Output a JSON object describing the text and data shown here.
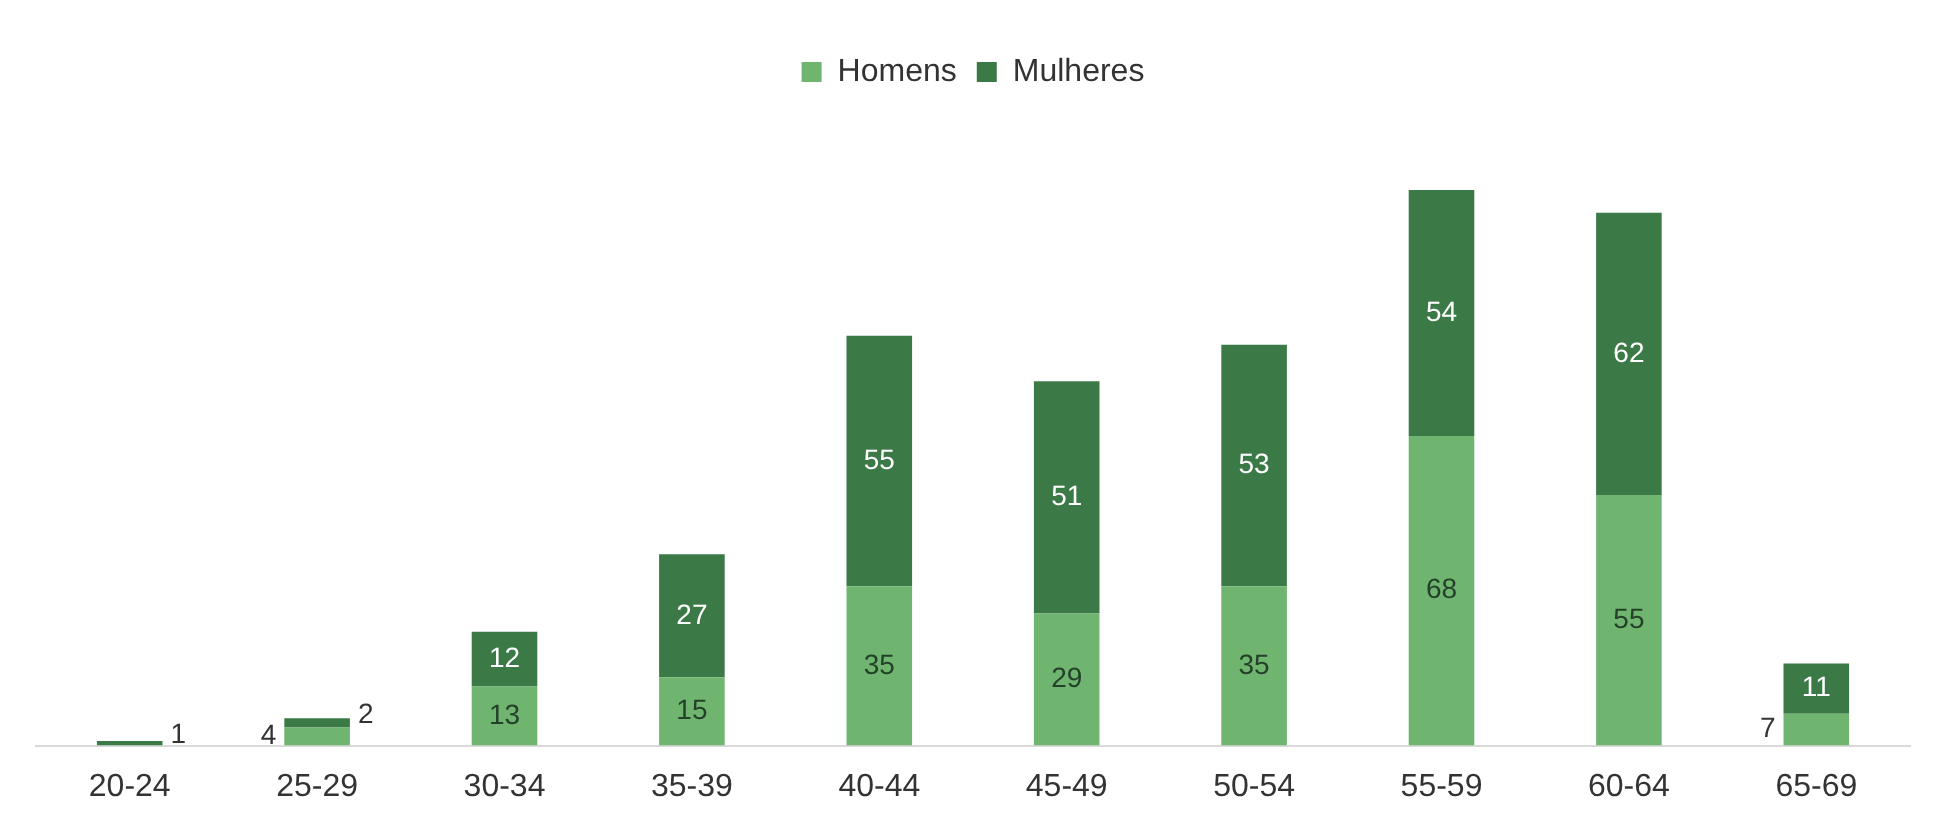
{
  "chart_data": {
    "type": "bar",
    "stacked": true,
    "legend": "top",
    "categories": [
      "20-24",
      "25-29",
      "30-34",
      "35-39",
      "40-44",
      "45-49",
      "50-54",
      "55-59",
      "60-64",
      "65-69"
    ],
    "series": [
      {
        "name": "Homens",
        "color": "#6fb56f",
        "values": [
          0,
          4,
          13,
          15,
          35,
          29,
          35,
          68,
          55,
          7
        ],
        "value_labels": [
          null,
          "4",
          "13",
          "15",
          "35",
          "29",
          "35",
          "68",
          "55",
          "7"
        ]
      },
      {
        "name": "Mulheres",
        "color": "#3b7a47",
        "values": [
          1,
          2,
          12,
          27,
          55,
          51,
          53,
          54,
          62,
          11
        ],
        "value_labels": [
          "1",
          "2",
          "12",
          "27",
          "55",
          "51",
          "53",
          "54",
          "62",
          "11"
        ]
      }
    ]
  }
}
